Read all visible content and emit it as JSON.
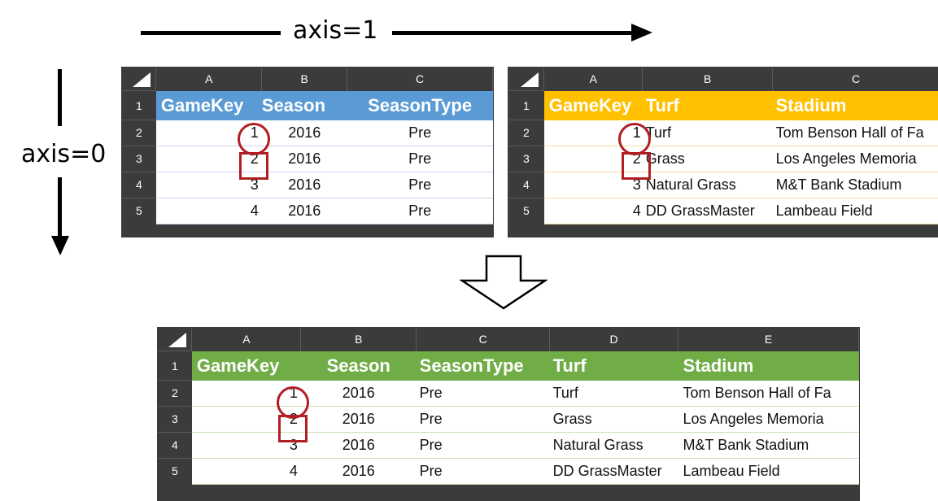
{
  "axis1_label": "axis=1",
  "axis0_label": "axis=0",
  "colors": {
    "blue_header": "#5b9bd5",
    "orange_header": "#ffc000",
    "green_header": "#70ad47",
    "highlight": "#b01e23"
  },
  "sheet_left": {
    "col_letters": [
      "A",
      "B",
      "C"
    ],
    "row_numbers": [
      "1",
      "2",
      "3",
      "4",
      "5"
    ],
    "headers": [
      "GameKey",
      "Season",
      "SeasonType"
    ],
    "rows": [
      [
        "1",
        "2016",
        "Pre"
      ],
      [
        "2",
        "2016",
        "Pre"
      ],
      [
        "3",
        "2016",
        "Pre"
      ],
      [
        "4",
        "2016",
        "Pre"
      ]
    ]
  },
  "sheet_right": {
    "col_letters": [
      "A",
      "B",
      "C"
    ],
    "row_numbers": [
      "1",
      "2",
      "3",
      "4",
      "5"
    ],
    "headers": [
      "GameKey",
      "Turf",
      "Stadium"
    ],
    "rows": [
      [
        "1",
        "Turf",
        "Tom Benson Hall of Fa"
      ],
      [
        "2",
        "Grass",
        "Los  Angeles Memoria"
      ],
      [
        "3",
        "Natural Grass",
        "M&T Bank Stadium"
      ],
      [
        "4",
        "DD GrassMaster",
        "Lambeau Field"
      ]
    ]
  },
  "sheet_result": {
    "col_letters": [
      "A",
      "B",
      "C",
      "D",
      "E"
    ],
    "row_numbers": [
      "1",
      "2",
      "3",
      "4",
      "5"
    ],
    "headers": [
      "GameKey",
      "Season",
      "SeasonType",
      "Turf",
      "Stadium"
    ],
    "rows": [
      [
        "1",
        "2016",
        "Pre",
        "Turf",
        "Tom Benson Hall of Fa"
      ],
      [
        "2",
        "2016",
        "Pre",
        "Grass",
        "Los  Angeles Memoria"
      ],
      [
        "3",
        "2016",
        "Pre",
        "Natural Grass",
        "M&T Bank Stadium"
      ],
      [
        "4",
        "2016",
        "Pre",
        "DD GrassMaster",
        "Lambeau Field"
      ]
    ]
  }
}
